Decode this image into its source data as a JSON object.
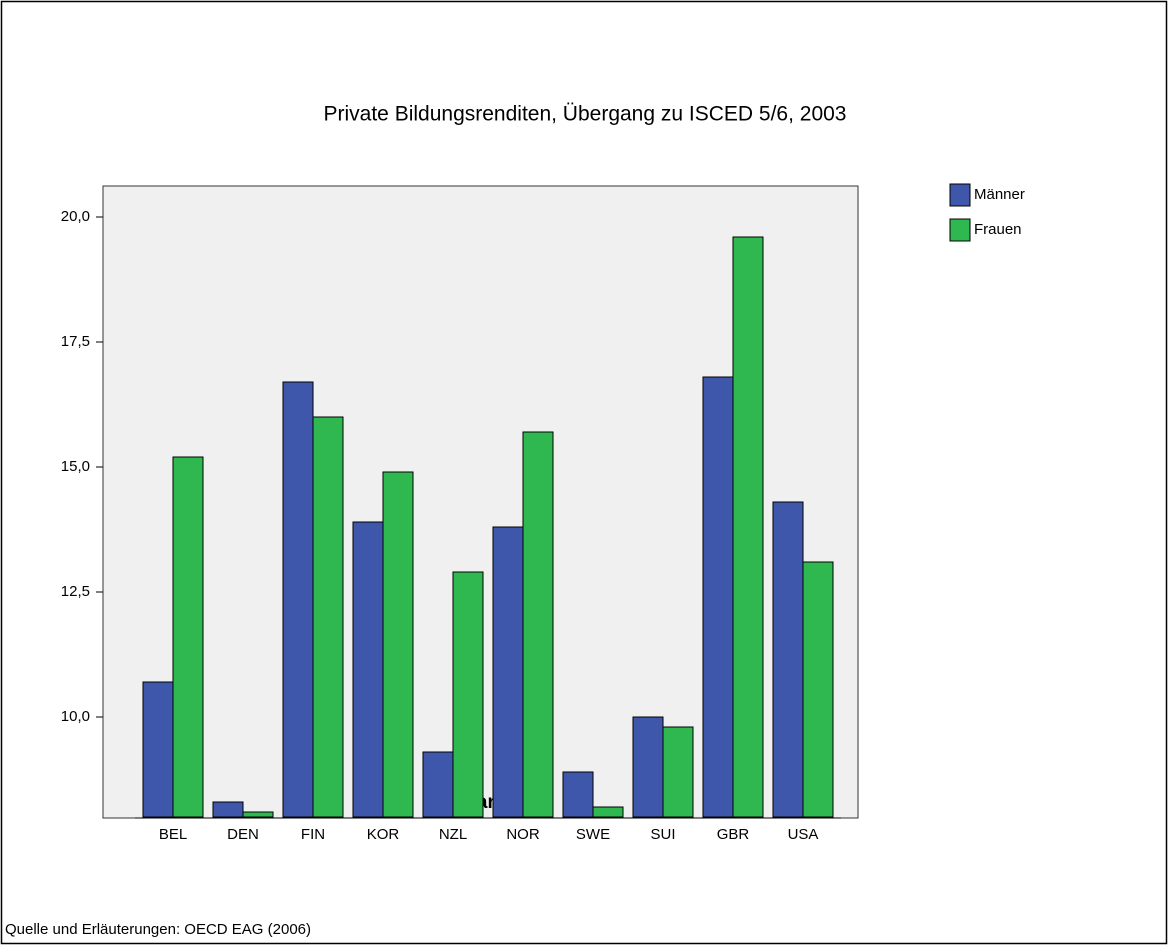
{
  "chart_data": {
    "type": "bar",
    "title": "Private Bildungsrenditen, Übergang zu ISCED 5/6, 2003",
    "x_label": "Land",
    "source": "Quelle und Erläuterungen: OECD EAG (2006)",
    "categories": [
      "BEL",
      "DEN",
      "FIN",
      "KOR",
      "NZL",
      "NOR",
      "SWE",
      "SUI",
      "GBR",
      "USA"
    ],
    "series": [
      {
        "name": "Männer",
        "color": "#3e57ab",
        "values": [
          10.7,
          8.3,
          16.7,
          13.9,
          9.3,
          13.8,
          8.9,
          10.0,
          16.8,
          14.3
        ]
      },
      {
        "name": "Frauen",
        "color": "#2fb84f",
        "values": [
          15.2,
          8.1,
          16.0,
          14.9,
          12.9,
          15.7,
          8.2,
          9.8,
          19.6,
          13.1
        ]
      }
    ],
    "ylim": [
      8.0,
      20.6
    ],
    "yticks": [
      {
        "value": 10,
        "label": "10,0"
      },
      {
        "value": 12.5,
        "label": "12,5"
      },
      {
        "value": 15,
        "label": "15,0"
      },
      {
        "value": 17.5,
        "label": "17,5"
      },
      {
        "value": 20,
        "label": "20,0"
      }
    ],
    "legend": "right"
  }
}
